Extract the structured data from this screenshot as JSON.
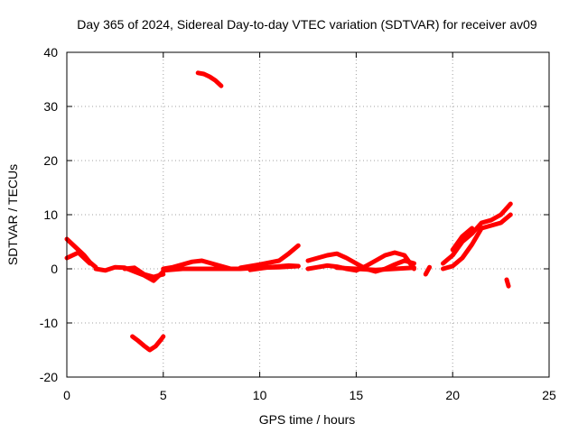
{
  "chart_data": {
    "type": "scatter",
    "title": "Day 365 of 2024, Sidereal Day-to-day VTEC variation (SDTVAR) for receiver av09",
    "xlabel": "GPS time / hours",
    "ylabel": "SDTVAR / TECUs",
    "xlim": [
      0,
      25
    ],
    "ylim": [
      -20,
      40
    ],
    "xticks": [
      0,
      5,
      10,
      15,
      20,
      25
    ],
    "yticks": [
      -20,
      -10,
      0,
      10,
      20,
      30,
      40
    ],
    "grid": true,
    "color": "#ff0000",
    "series": [
      {
        "name": "early-drop-a",
        "x": [
          0.0,
          0.3,
          0.6,
          0.9,
          1.2,
          1.5
        ],
        "y": [
          5.5,
          4.5,
          3.5,
          2.5,
          1.2,
          0.3
        ]
      },
      {
        "name": "early-drop-b",
        "x": [
          0.0,
          0.3,
          0.6,
          0.9,
          1.2
        ],
        "y": [
          2.0,
          2.5,
          3.0,
          2.0,
          1.0
        ]
      },
      {
        "name": "night-dip",
        "x": [
          1.5,
          2.0,
          2.5,
          3.0,
          3.5,
          4.0,
          4.5,
          5.0
        ],
        "y": [
          0.0,
          -0.3,
          0.3,
          0.2,
          -0.5,
          -1.2,
          -2.2,
          -0.5
        ]
      },
      {
        "name": "night-dip-b",
        "x": [
          3.0,
          3.5,
          4.0,
          4.5,
          5.0
        ],
        "y": [
          0.0,
          0.2,
          -1.0,
          -1.5,
          -1.0
        ]
      },
      {
        "name": "arc-low",
        "x": [
          3.4,
          3.7,
          4.0,
          4.3,
          4.6,
          4.9,
          5.0
        ],
        "y": [
          -12.5,
          -13.3,
          -14.2,
          -15.0,
          -14.3,
          -13.0,
          -12.5
        ]
      },
      {
        "name": "morning-hump",
        "x": [
          5.0,
          5.5,
          6.0,
          6.5,
          7.0,
          7.5,
          8.0,
          8.5
        ],
        "y": [
          0.0,
          0.3,
          0.8,
          1.3,
          1.5,
          1.0,
          0.5,
          0.0
        ]
      },
      {
        "name": "morning-flat",
        "x": [
          5.0,
          6.0,
          7.0,
          8.0,
          9.0,
          10.0,
          11.0,
          12.0
        ],
        "y": [
          -0.3,
          0.0,
          0.0,
          0.0,
          0.0,
          0.2,
          0.3,
          0.5
        ]
      },
      {
        "name": "arc-high",
        "x": [
          6.8,
          7.1,
          7.4,
          7.7,
          8.0
        ],
        "y": [
          36.2,
          36.0,
          35.5,
          34.8,
          33.8
        ]
      },
      {
        "name": "midday-rise",
        "x": [
          9.0,
          10.0,
          11.0,
          11.5,
          12.0
        ],
        "y": [
          0.2,
          0.8,
          1.5,
          2.8,
          4.3
        ]
      },
      {
        "name": "midday-flat",
        "x": [
          9.5,
          10.5,
          11.5,
          12.0
        ],
        "y": [
          -0.2,
          0.3,
          0.6,
          0.5
        ]
      },
      {
        "name": "afternoon-loop-a",
        "x": [
          12.5,
          13.0,
          13.5,
          14.0,
          14.5,
          15.0,
          15.5,
          16.0,
          16.5,
          17.0,
          17.5,
          18.0
        ],
        "y": [
          1.5,
          2.0,
          2.5,
          2.8,
          2.0,
          1.0,
          0.0,
          -0.5,
          0.0,
          0.8,
          1.5,
          1.0
        ]
      },
      {
        "name": "afternoon-loop-b",
        "x": [
          12.5,
          13.0,
          13.5,
          14.0,
          14.5,
          15.0,
          15.5,
          16.0,
          16.5,
          17.0,
          17.5,
          18.0
        ],
        "y": [
          0.0,
          0.3,
          0.6,
          0.4,
          0.0,
          -0.3,
          0.5,
          1.5,
          2.5,
          3.0,
          2.5,
          0.0
        ]
      },
      {
        "name": "afternoon-flat",
        "x": [
          14.0,
          15.0,
          16.0,
          17.0,
          18.0
        ],
        "y": [
          0.2,
          0.0,
          -0.2,
          0.0,
          0.2
        ]
      },
      {
        "name": "dusk-blip",
        "x": [
          18.6,
          18.8
        ],
        "y": [
          -1.0,
          0.3
        ]
      },
      {
        "name": "evening-rise-a",
        "x": [
          19.5,
          20.0,
          20.5,
          21.0,
          21.5,
          22.0,
          22.5,
          23.0
        ],
        "y": [
          1.0,
          2.5,
          5.0,
          6.5,
          8.5,
          9.0,
          10.0,
          12.0
        ]
      },
      {
        "name": "evening-rise-b",
        "x": [
          19.5,
          20.0,
          20.5,
          21.0,
          21.5,
          22.0,
          22.5,
          23.0
        ],
        "y": [
          0.0,
          0.5,
          2.0,
          4.5,
          7.5,
          8.0,
          8.5,
          10.0
        ]
      },
      {
        "name": "evening-rise-c",
        "x": [
          20.0,
          20.5,
          21.0
        ],
        "y": [
          3.5,
          6.0,
          7.5
        ]
      },
      {
        "name": "late-blip",
        "x": [
          22.8,
          22.9
        ],
        "y": [
          -2.0,
          -3.2
        ]
      }
    ]
  }
}
